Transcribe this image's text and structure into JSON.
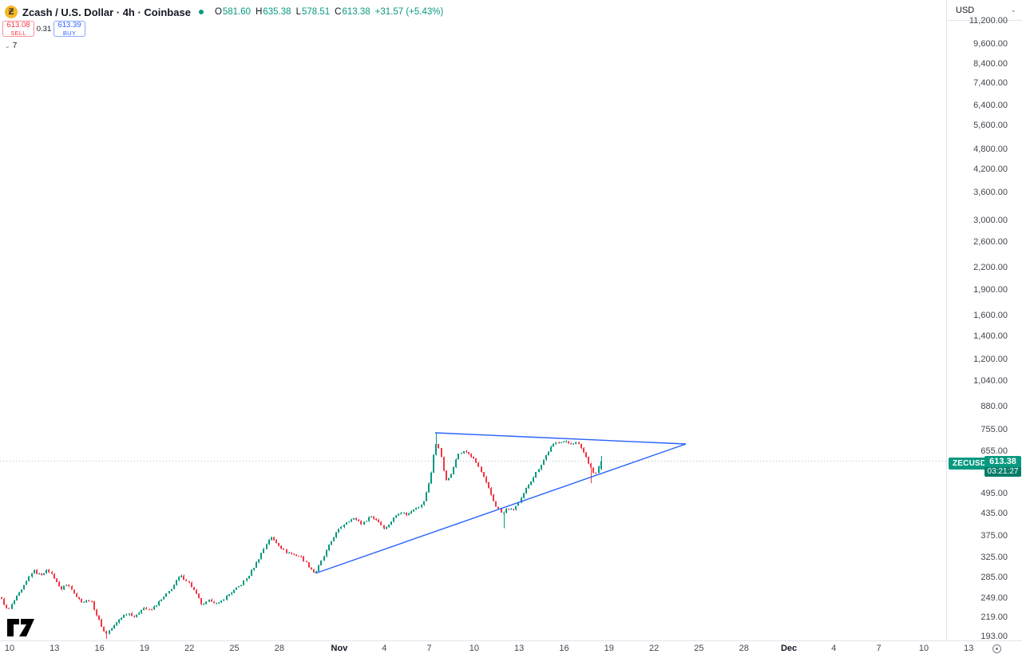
{
  "header": {
    "coin_glyph": "Ƶ",
    "title": "Zcash / U.S. Dollar · 4h · Coinbase",
    "ohlc": {
      "o_label": "O",
      "o": "581.60",
      "h_label": "H",
      "h": "635.38",
      "l_label": "L",
      "l": "578.51",
      "c_label": "C",
      "c": "613.38",
      "change": "+31.57 (+5.43%)"
    }
  },
  "order_widget": {
    "sell_price": "613.08",
    "sell_label": "SELL",
    "spread": "0.31",
    "buy_price": "613.39",
    "buy_label": "BUY"
  },
  "indicators_pill": {
    "chevron": "⌄",
    "count": "7"
  },
  "right_axis": {
    "currency": "USD",
    "chevron": "⌄",
    "ticks": [
      {
        "label": "11,200.00",
        "p": 11200
      },
      {
        "label": "9,600.00",
        "p": 9600
      },
      {
        "label": "8,400.00",
        "p": 8400
      },
      {
        "label": "7,400.00",
        "p": 7400
      },
      {
        "label": "6,400.00",
        "p": 6400
      },
      {
        "label": "5,600.00",
        "p": 5600
      },
      {
        "label": "4,800.00",
        "p": 4800
      },
      {
        "label": "4,200.00",
        "p": 4200
      },
      {
        "label": "3,600.00",
        "p": 3600
      },
      {
        "label": "3,000.00",
        "p": 3000
      },
      {
        "label": "2,600.00",
        "p": 2600
      },
      {
        "label": "2,200.00",
        "p": 2200
      },
      {
        "label": "1,900.00",
        "p": 1900
      },
      {
        "label": "1,600.00",
        "p": 1600
      },
      {
        "label": "1,400.00",
        "p": 1400
      },
      {
        "label": "1,200.00",
        "p": 1200
      },
      {
        "label": "1,040.00",
        "p": 1040
      },
      {
        "label": "880.00",
        "p": 880
      },
      {
        "label": "755.00",
        "p": 755
      },
      {
        "label": "655.00",
        "p": 655
      },
      {
        "label": "495.00",
        "p": 495
      },
      {
        "label": "435.00",
        "p": 435
      },
      {
        "label": "375.00",
        "p": 375
      },
      {
        "label": "325.00",
        "p": 325
      },
      {
        "label": "285.00",
        "p": 285
      },
      {
        "label": "249.00",
        "p": 249
      },
      {
        "label": "219.00",
        "p": 219
      },
      {
        "label": "193.00",
        "p": 193
      }
    ]
  },
  "price_label": {
    "ticker": "ZECUSD",
    "price": "613.38",
    "countdown": "03:21:27"
  },
  "time_axis": {
    "ticks": [
      {
        "label": "10",
        "d": 0
      },
      {
        "label": "13",
        "d": 3
      },
      {
        "label": "16",
        "d": 6
      },
      {
        "label": "19",
        "d": 9
      },
      {
        "label": "22",
        "d": 12
      },
      {
        "label": "25",
        "d": 15
      },
      {
        "label": "28",
        "d": 18
      },
      {
        "label": "Nov",
        "d": 22,
        "bold": true
      },
      {
        "label": "4",
        "d": 25
      },
      {
        "label": "7",
        "d": 28
      },
      {
        "label": "10",
        "d": 31
      },
      {
        "label": "13",
        "d": 34
      },
      {
        "label": "16",
        "d": 37
      },
      {
        "label": "19",
        "d": 40
      },
      {
        "label": "22",
        "d": 43
      },
      {
        "label": "25",
        "d": 46
      },
      {
        "label": "28",
        "d": 49
      },
      {
        "label": "Dec",
        "d": 52,
        "bold": true
      },
      {
        "label": "4",
        "d": 55
      },
      {
        "label": "7",
        "d": 58
      },
      {
        "label": "10",
        "d": 61
      },
      {
        "label": "13",
        "d": 64
      }
    ]
  },
  "chart_data": {
    "type": "candlestick",
    "symbol": "ZECUSD",
    "exchange": "Coinbase",
    "interval": "4h",
    "title": "Zcash / U.S. Dollar",
    "x_range": [
      "Oct 9",
      "Dec 13"
    ],
    "y_scale": "log",
    "y_range_labels": [
      193,
      11200
    ],
    "grid": false,
    "last_candle": {
      "open": 581.6,
      "high": 635.38,
      "low": 578.51,
      "close": 613.38
    },
    "last_price": 613.38,
    "scale": {
      "x0": 2,
      "bar_spacing": 3.128,
      "y_anchor": 565,
      "p_anchor": 655,
      "log_k": 0.005265
    },
    "keypoints": [
      [
        0,
        250
      ],
      [
        3,
        228
      ],
      [
        6,
        248
      ],
      [
        9,
        265
      ],
      [
        13,
        298
      ],
      [
        16,
        290
      ],
      [
        19,
        299
      ],
      [
        22,
        282
      ],
      [
        24,
        262
      ],
      [
        26,
        272
      ],
      [
        28,
        268
      ],
      [
        31,
        248
      ],
      [
        33,
        242
      ],
      [
        36,
        246
      ],
      [
        39,
        218
      ],
      [
        42,
        196
      ],
      [
        45,
        205
      ],
      [
        48,
        218
      ],
      [
        51,
        226
      ],
      [
        54,
        219
      ],
      [
        57,
        234
      ],
      [
        60,
        229
      ],
      [
        63,
        240
      ],
      [
        66,
        252
      ],
      [
        69,
        268
      ],
      [
        72,
        288
      ],
      [
        75,
        278
      ],
      [
        78,
        258
      ],
      [
        81,
        236
      ],
      [
        84,
        246
      ],
      [
        87,
        238
      ],
      [
        90,
        250
      ],
      [
        93,
        260
      ],
      [
        96,
        270
      ],
      [
        99,
        285
      ],
      [
        103,
        318
      ],
      [
        106,
        350
      ],
      [
        108,
        372
      ],
      [
        111,
        356
      ],
      [
        114,
        338
      ],
      [
        117,
        332
      ],
      [
        120,
        328
      ],
      [
        123,
        310
      ],
      [
        126,
        292
      ],
      [
        129,
        322
      ],
      [
        131,
        345
      ],
      [
        133,
        368
      ],
      [
        136,
        395
      ],
      [
        139,
        415
      ],
      [
        142,
        420
      ],
      [
        145,
        405
      ],
      [
        148,
        428
      ],
      [
        151,
        415
      ],
      [
        154,
        392
      ],
      [
        157,
        418
      ],
      [
        160,
        440
      ],
      [
        163,
        430
      ],
      [
        166,
        452
      ],
      [
        169,
        460
      ],
      [
        171,
        510
      ],
      [
        173,
        590
      ],
      [
        174,
        690
      ],
      [
        176,
        665
      ],
      [
        178,
        540
      ],
      [
        180,
        548
      ],
      [
        183,
        640
      ],
      [
        186,
        655
      ],
      [
        188,
        640
      ],
      [
        191,
        600
      ],
      [
        193,
        560
      ],
      [
        195,
        520
      ],
      [
        198,
        462
      ],
      [
        201,
        432
      ],
      [
        203,
        450
      ],
      [
        205,
        442
      ],
      [
        208,
        470
      ],
      [
        211,
        520
      ],
      [
        214,
        560
      ],
      [
        217,
        610
      ],
      [
        220,
        665
      ],
      [
        222,
        690
      ],
      [
        225,
        700
      ],
      [
        228,
        688
      ],
      [
        230,
        695
      ],
      [
        232,
        680
      ],
      [
        234,
        640
      ],
      [
        236,
        598
      ],
      [
        238,
        560
      ],
      [
        239,
        572
      ],
      [
        240,
        613
      ]
    ],
    "wick_overrides": [
      {
        "i": 42,
        "low": 190
      },
      {
        "i": 174,
        "high": 740
      },
      {
        "i": 201,
        "low": 394
      },
      {
        "i": 236,
        "low": 531
      }
    ],
    "n_bars": 241,
    "colors": {
      "up": "#089981",
      "down": "#f23645",
      "trendline": "#2962ff",
      "price_line": "#9598a1"
    },
    "trendlines": [
      {
        "x1": 395,
        "y1": 718,
        "x2": 859,
        "y2": 556
      },
      {
        "x1": 545,
        "y1": 542,
        "x2": 859,
        "y2": 556
      }
    ]
  }
}
